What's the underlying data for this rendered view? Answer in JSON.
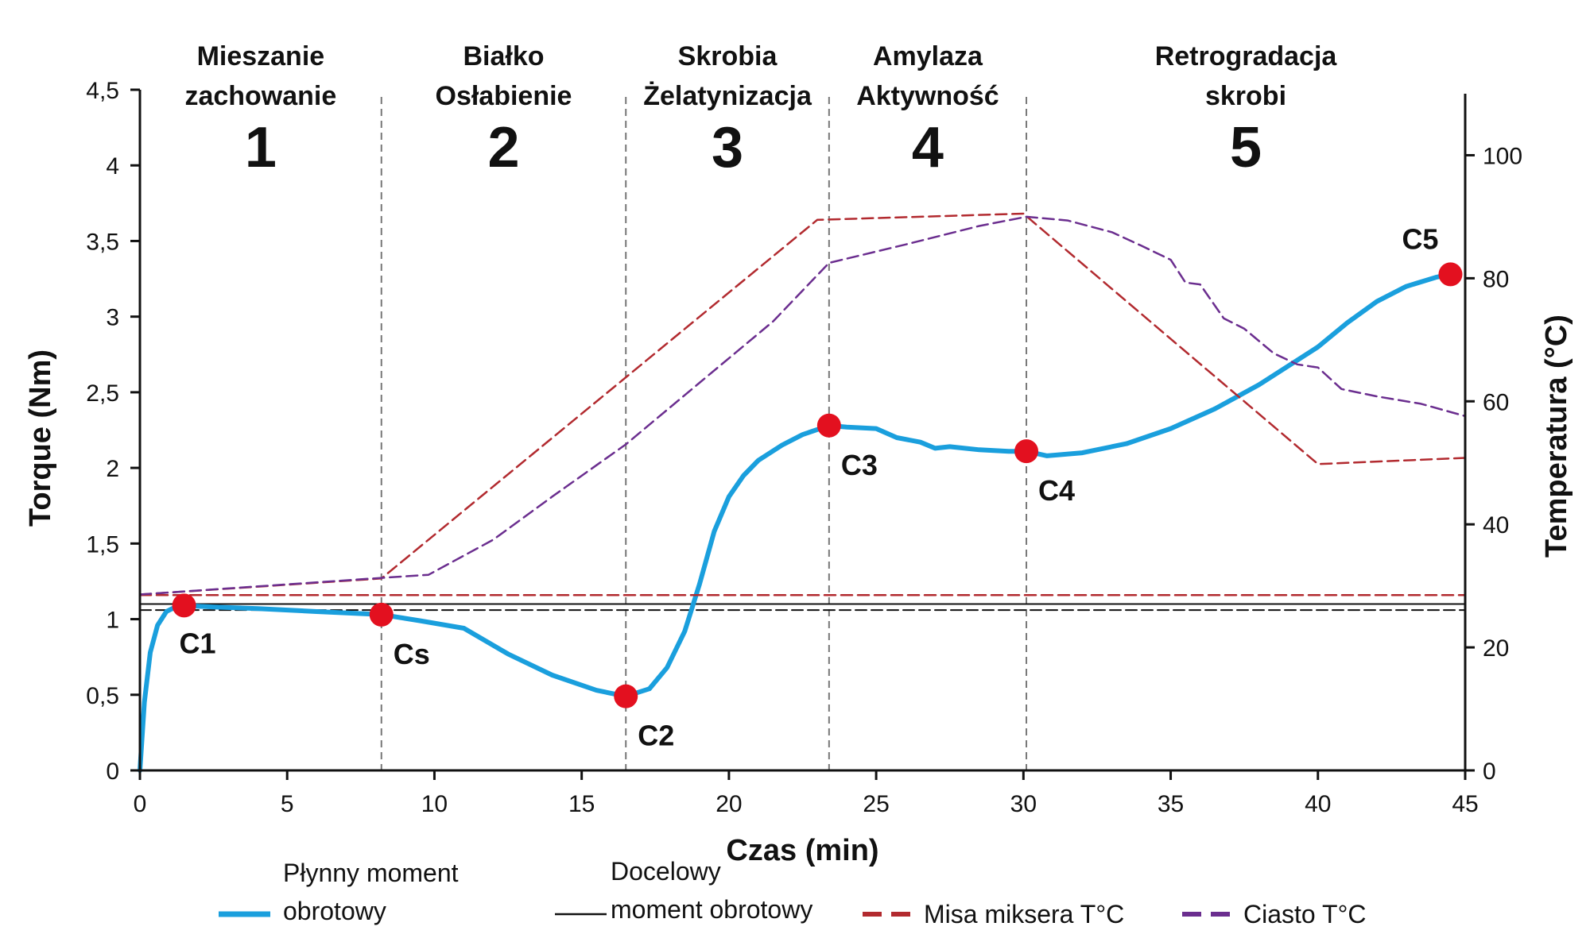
{
  "chart_data": {
    "type": "line",
    "title": "",
    "xlabel": "Czas (min)",
    "ylabel": "Torque (Nm)",
    "y2label": "Temperatura (°C)",
    "xlim": [
      0,
      45
    ],
    "ylim": [
      0,
      4.5
    ],
    "y2lim": [
      0,
      110
    ],
    "x_ticks": [
      0,
      5,
      10,
      15,
      20,
      25,
      30,
      35,
      40,
      45
    ],
    "x_tick_labels": [
      "0",
      "5",
      "10",
      "15",
      "20",
      "25",
      "30",
      "35",
      "40",
      "45"
    ],
    "y_ticks": [
      0,
      0.5,
      1,
      1.5,
      2,
      2.5,
      3,
      3.5,
      4,
      4.5
    ],
    "y_tick_labels": [
      "0",
      "0,5",
      "1",
      "1,5",
      "2",
      "2,5",
      "3",
      "3,5",
      "4",
      "4,5"
    ],
    "y2_ticks": [
      0,
      20,
      40,
      60,
      80,
      100
    ],
    "y2_tick_labels": [
      "0",
      "20",
      "40",
      "60",
      "80",
      "100"
    ],
    "phases": [
      {
        "title_line1": "Mieszanie",
        "title_line2": "zachowanie",
        "number": "1",
        "start": 0,
        "end": 8.2
      },
      {
        "title_line1": "Białko",
        "title_line2": "Osłabienie",
        "number": "2",
        "start": 8.2,
        "end": 16.5
      },
      {
        "title_line1": "Skrobia",
        "title_line2": "Żelatynizacja",
        "number": "3",
        "start": 16.5,
        "end": 23.4
      },
      {
        "title_line1": "Amylaza",
        "title_line2": "Aktywność",
        "number": "4",
        "start": 23.4,
        "end": 30.1
      },
      {
        "title_line1": "Retrogradacja",
        "title_line2": "skrobi",
        "number": "5",
        "start": 30.1,
        "end": 45
      }
    ],
    "phase_boundaries": [
      8.2,
      16.5,
      23.4,
      30.1
    ],
    "series": [
      {
        "name": "Płynny moment obrotowy",
        "axis": "left",
        "color": "#1a9fdd",
        "style": "solid",
        "x": [
          0,
          0.15,
          0.35,
          0.6,
          0.9,
          1.2,
          1.5,
          2.5,
          4,
          6,
          8.2,
          9.5,
          11,
          12.5,
          14,
          15.5,
          16.5,
          17.3,
          17.9,
          18.5,
          19,
          19.5,
          20,
          20.5,
          21,
          21.8,
          22.5,
          23.4,
          24,
          25,
          25.7,
          26.5,
          27,
          27.5,
          28.5,
          29.5,
          30.1,
          30.8,
          32,
          33.5,
          35,
          36.5,
          38,
          40,
          41,
          42,
          43,
          44,
          44.5
        ],
        "y": [
          0,
          0.45,
          0.78,
          0.96,
          1.05,
          1.08,
          1.09,
          1.08,
          1.07,
          1.05,
          1.03,
          0.99,
          0.94,
          0.77,
          0.63,
          0.53,
          0.49,
          0.54,
          0.68,
          0.92,
          1.23,
          1.58,
          1.81,
          1.95,
          2.05,
          2.15,
          2.22,
          2.28,
          2.27,
          2.26,
          2.2,
          2.17,
          2.13,
          2.14,
          2.12,
          2.11,
          2.11,
          2.08,
          2.1,
          2.16,
          2.26,
          2.39,
          2.55,
          2.8,
          2.96,
          3.1,
          3.2,
          3.26,
          3.28
        ]
      },
      {
        "name": "Docelowy moment obrotowy",
        "axis": "left",
        "color": "#111111",
        "style": "solid",
        "x": [
          0,
          45
        ],
        "y": [
          1.1,
          1.1
        ]
      },
      {
        "name": "Docelowy moment obrotowy (dolny)",
        "axis": "left",
        "color": "#111111",
        "style": "dashed",
        "x": [
          0,
          45
        ],
        "y": [
          1.06,
          1.06
        ]
      },
      {
        "name": "Misa miksera T°C",
        "axis": "right",
        "color": "#b22a2f",
        "style": "dashed",
        "x": [
          0,
          8.2,
          23,
          30,
          40,
          45
        ],
        "y": [
          28.6,
          31.2,
          89.5,
          90.5,
          49.8,
          50.8
        ]
      },
      {
        "name": "Misa miksera T°C (poziom)",
        "axis": "right",
        "color": "#b22a2f",
        "style": "dashed",
        "x": [
          0,
          45
        ],
        "y": [
          28.5,
          28.5
        ]
      },
      {
        "name": "Ciasto T°C",
        "axis": "right",
        "color": "#6b2e8f",
        "style": "dashed",
        "x": [
          0,
          8.2,
          9.8,
          12,
          14,
          16.5,
          19,
          21.5,
          23.4,
          26,
          28.5,
          30.1,
          31.5,
          33,
          34,
          35,
          35.5,
          36,
          36.8,
          37.5,
          38.5,
          39.3,
          40,
          40.8,
          42,
          43.5,
          45
        ],
        "y": [
          28.6,
          31.3,
          31.8,
          37.5,
          44.5,
          53,
          63,
          73,
          82.5,
          85.5,
          88.5,
          90,
          89.4,
          87.5,
          85.3,
          83,
          79.3,
          79,
          73.5,
          71.8,
          67.8,
          66,
          65.5,
          62,
          60.8,
          59.6,
          57.6
        ]
      }
    ],
    "points": [
      {
        "label": "C1",
        "x": 1.5,
        "y": 1.09,
        "label_pos": "below"
      },
      {
        "label": "Cs",
        "x": 8.2,
        "y": 1.03,
        "label_pos": "below-right"
      },
      {
        "label": "C2",
        "x": 16.5,
        "y": 0.49,
        "label_pos": "below-right"
      },
      {
        "label": "C3",
        "x": 23.4,
        "y": 2.28,
        "label_pos": "below-right"
      },
      {
        "label": "C4",
        "x": 30.1,
        "y": 2.11,
        "label_pos": "below-right"
      },
      {
        "label": "C5",
        "x": 44.5,
        "y": 3.28,
        "label_pos": "above-left"
      }
    ],
    "point_color": "#e3101f",
    "legend": [
      {
        "line1": "Płynny moment",
        "line2": "obrotowy",
        "color": "#1a9fdd",
        "style": "solid"
      },
      {
        "line1": "Docelowy",
        "line2": "moment obrotowy",
        "color": "#111111",
        "style": "solid"
      },
      {
        "line1": "Misa miksera T°C",
        "line2": "",
        "color": "#b22a2f",
        "style": "dashed"
      },
      {
        "line1": "Ciasto T°C",
        "line2": "",
        "color": "#6b2e8f",
        "style": "dashed"
      }
    ],
    "legend_position": "bottom"
  }
}
